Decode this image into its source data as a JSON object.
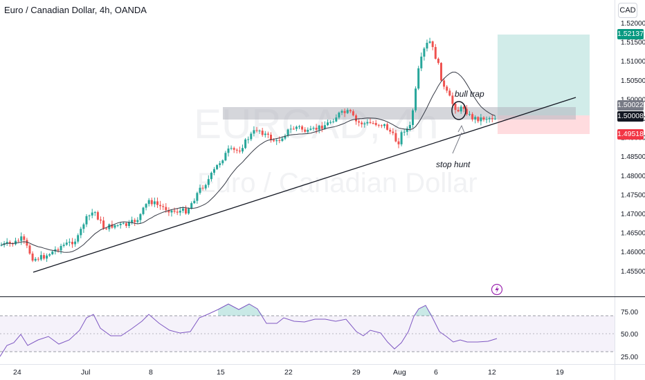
{
  "header": {
    "title": "Euro / Canadian Dollar, 4h, OANDA",
    "currency": "CAD"
  },
  "watermark": {
    "symbol": "EURCAD, 4h",
    "name": "Euro / Canadian Dollar"
  },
  "annotations": {
    "bull_trap": "bull trap",
    "stop_hunt": "stop hunt"
  },
  "price_axis": {
    "ticks": [
      "1.52000",
      "1.51500",
      "1.51000",
      "1.50500",
      "1.50000",
      "1.49500",
      "1.49000",
      "1.48500",
      "1.48000",
      "1.47500",
      "1.47000",
      "1.46500",
      "1.46000",
      "1.45500"
    ]
  },
  "price_labels": {
    "target": "1.52137",
    "upper": "1.50022",
    "current": "1.50008",
    "stop": "1.49518"
  },
  "rsi_axis": {
    "ticks": [
      "75.00",
      "50.00",
      "25.00"
    ]
  },
  "time_axis": {
    "ticks": [
      "24",
      "Jul",
      "8",
      "15",
      "22",
      "29",
      "Aug",
      "6",
      "12",
      "19"
    ]
  },
  "colors": {
    "bull": "#26a69a",
    "bear": "#ef5350",
    "ma": "#363a45",
    "trendline": "#131722",
    "rsi": "#7e57c2",
    "target_zone": "#b2dfdb",
    "stop_zone": "#ffcdd2",
    "resistance_zone": "#b2b5be",
    "target_label": "#089981",
    "stop_label": "#f23645",
    "current_label": "#131722",
    "upper_label": "#787b86"
  },
  "icons": {
    "alert": "lightning-icon"
  },
  "chart_data": {
    "type": "candlestick",
    "ylim": [
      1.453,
      1.525
    ],
    "rsi_levels": [
      70,
      50,
      30
    ],
    "rsi_ylim": [
      20,
      80
    ],
    "trendline": [
      [
        1.4585,
        1.5048
      ]
    ],
    "position": {
      "entry": 1.50008,
      "target": 1.52137,
      "stop": 1.49518
    },
    "resistance_zone": [
      1.4996,
      1.5026
    ]
  }
}
